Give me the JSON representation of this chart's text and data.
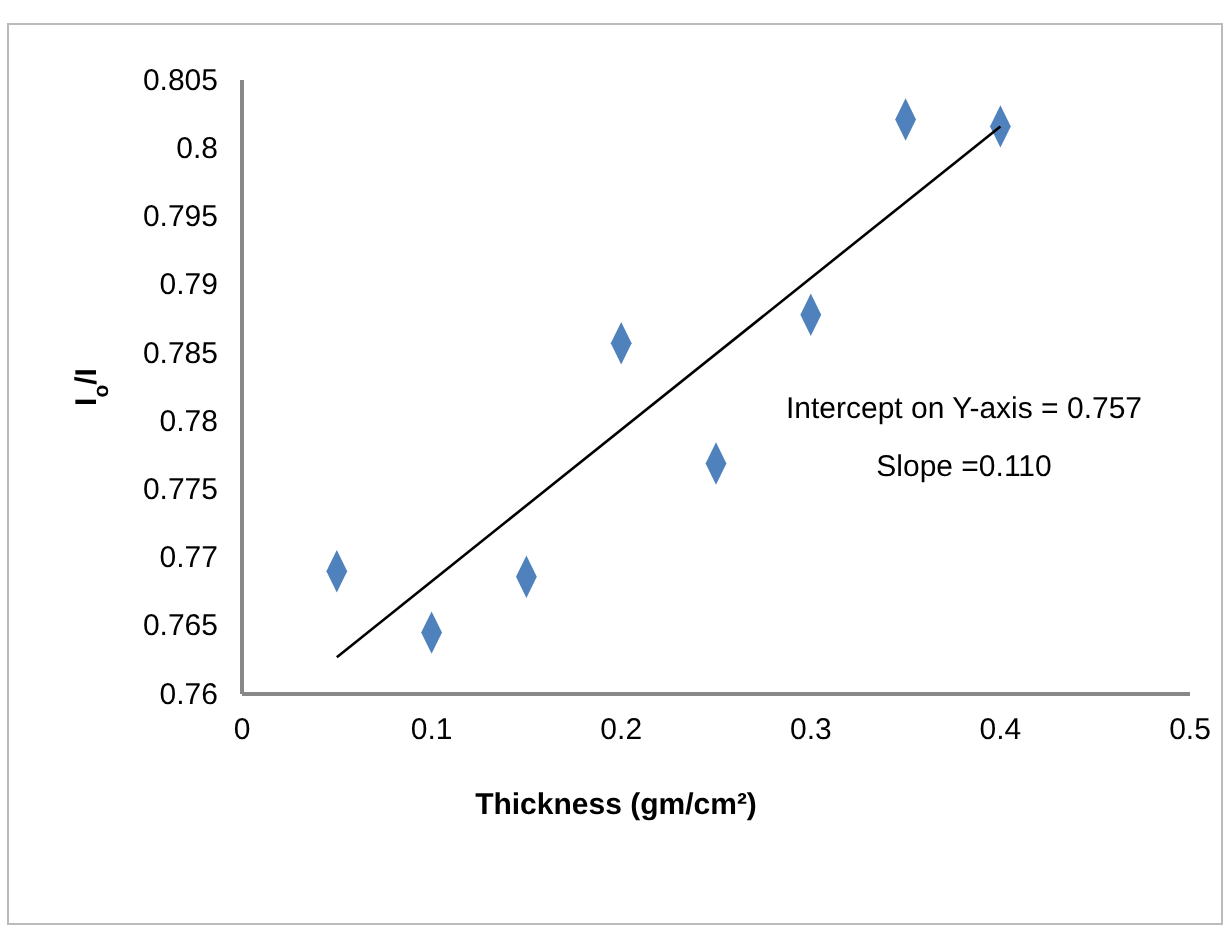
{
  "chart_data": {
    "type": "scatter",
    "xlabel": "Thickness (gm/cm²)",
    "ylabel": "I$_{o}$/I",
    "x": [
      0.05,
      0.1,
      0.15,
      0.2,
      0.25,
      0.3,
      0.35,
      0.4
    ],
    "series": [
      {
        "color": "#4f81bd",
        "marker": "diamond",
        "values": [
          0.769,
          0.7645,
          0.7686,
          0.7857,
          0.7769,
          0.7878,
          0.8021,
          0.8016
        ]
      },
      {
        "type": "line",
        "color": "#000000",
        "x": [
          0.05,
          0.4
        ],
        "values": [
          0.7627,
          0.8016
        ]
      }
    ],
    "xlim": [
      0,
      0.5
    ],
    "xticks": [
      0,
      0.1,
      0.2,
      0.3,
      0.4,
      0.5
    ],
    "ylim": [
      0.76,
      0.805
    ],
    "yticks": [
      0.76,
      0.765,
      0.77,
      0.775,
      0.78,
      0.785,
      0.79,
      0.795,
      0.8,
      0.805
    ],
    "grid": false,
    "annotations": [
      "Intercept on Y-axis = 0.757",
      "Slope =0.110"
    ]
  }
}
